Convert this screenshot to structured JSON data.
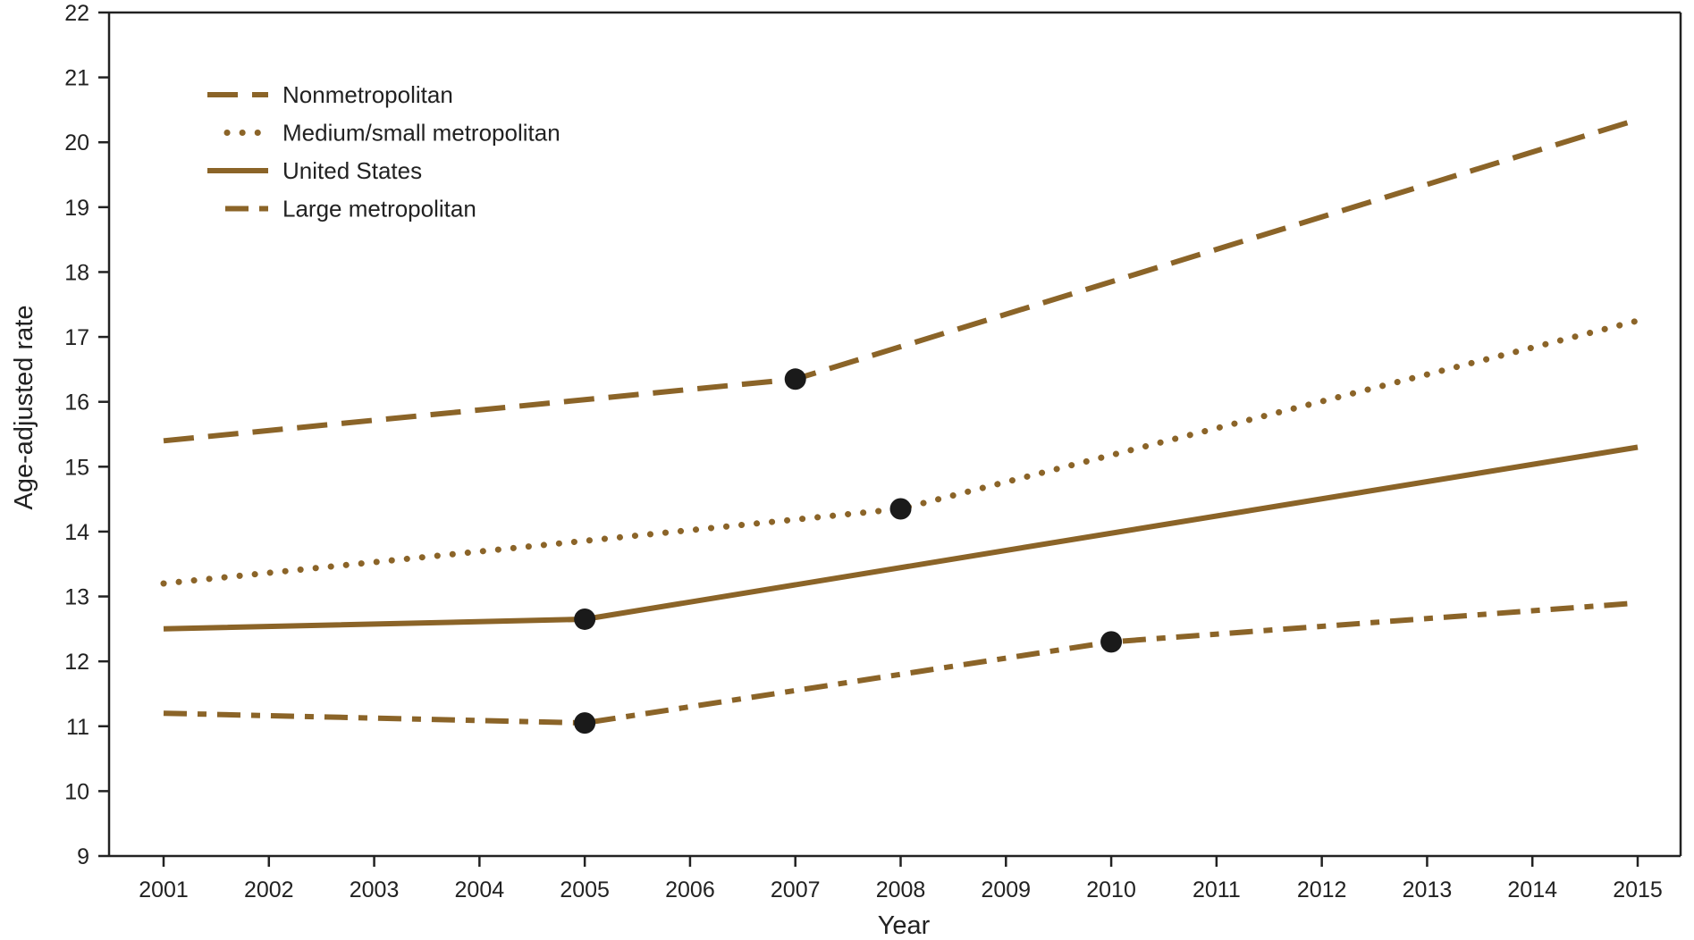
{
  "chart_data": {
    "type": "line",
    "xlabel": "Year",
    "ylabel": "Age-adjusted rate",
    "xlim": [
      2001,
      2015
    ],
    "ylim": [
      9,
      22
    ],
    "x_ticks": [
      "2001",
      "2002",
      "2003",
      "2004",
      "2005",
      "2006",
      "2007",
      "2008",
      "2009",
      "2010",
      "2011",
      "2012",
      "2013",
      "2014",
      "2015"
    ],
    "y_ticks": [
      "9",
      "10",
      "11",
      "12",
      "13",
      "14",
      "15",
      "16",
      "17",
      "18",
      "19",
      "20",
      "21",
      "22"
    ],
    "grid": false,
    "legend_position": "top-left",
    "line_color": "#8B6428",
    "marker_color": "#1a1a1a",
    "series": [
      {
        "name": "Nonmetropolitan",
        "style": "dashed",
        "points": [
          [
            2001,
            15.4
          ],
          [
            2007,
            16.35
          ],
          [
            2015,
            20.35
          ]
        ],
        "markers": [
          [
            2007,
            16.35
          ]
        ]
      },
      {
        "name": "Medium/small metropolitan",
        "style": "dotted",
        "points": [
          [
            2001,
            13.2
          ],
          [
            2008,
            14.35
          ],
          [
            2015,
            17.25
          ]
        ],
        "markers": [
          [
            2008,
            14.35
          ]
        ]
      },
      {
        "name": "United States",
        "style": "solid",
        "points": [
          [
            2001,
            12.5
          ],
          [
            2005,
            12.65
          ],
          [
            2015,
            15.3
          ]
        ],
        "markers": [
          [
            2005,
            12.65
          ]
        ]
      },
      {
        "name": "Large metropolitan",
        "style": "dashdot",
        "points": [
          [
            2001,
            11.2
          ],
          [
            2005,
            11.05
          ],
          [
            2010,
            12.3
          ],
          [
            2015,
            12.9
          ]
        ],
        "markers": [
          [
            2005,
            11.05
          ],
          [
            2010,
            12.3
          ]
        ]
      }
    ]
  }
}
